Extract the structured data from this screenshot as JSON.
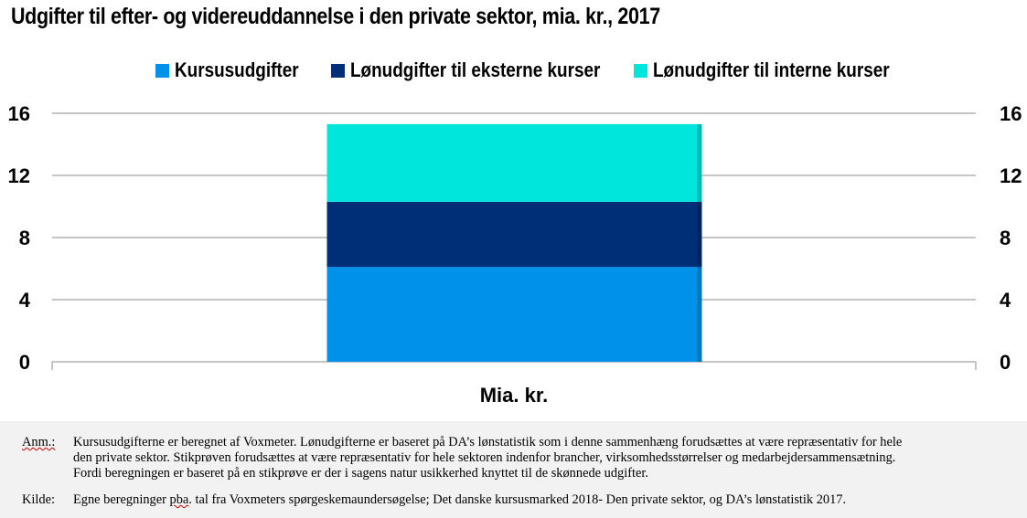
{
  "chart_data": {
    "type": "bar",
    "stacked": true,
    "title": "Udgifter til efter- og videreuddannelse i den private sektor, mia. kr., 2017",
    "categories": [
      "Mia. kr."
    ],
    "series": [
      {
        "name": "Kursusudgifter",
        "values": [
          6.1
        ],
        "color": "#0091ea"
      },
      {
        "name": "Lønudgifter til eksterne kurser",
        "values": [
          4.2
        ],
        "color": "#002f78"
      },
      {
        "name": "Lønudgifter til interne kurser",
        "values": [
          5.0
        ],
        "color": "#00e6dc"
      }
    ],
    "ylim": [
      0,
      16
    ],
    "yticks": [
      "0",
      "4",
      "8",
      "12",
      "16"
    ],
    "y2ticks": [
      "0",
      "4",
      "8",
      "12",
      "16"
    ],
    "grid": true,
    "legend_position": "top"
  },
  "notes": {
    "anm_label": "Anm.:",
    "anm_line1": "Kursusudgifterne er beregnet af Voxmeter. Lønudgifterne er baseret på DA’s lønstatistik som i denne sammenhæng forudsættes at være repræsentativ for hele",
    "anm_line2": "den private sektor. Stikprøven forudsættes at være repræsentativ for hele sektoren indenfor brancher, virksomhedsstørrelser og medarbejdersammensætning.",
    "anm_line3": "Fordi beregningen er baseret på en stikprøve er der i sagens natur usikkerhed knyttet til de skønnede udgifter.",
    "kilde_label": "Kilde:",
    "kilde_pre": "Egne beregninger ",
    "kilde_pba": "pba",
    "kilde_post": ". tal fra Voxmeters spørgeskemaundersøgelse; Det danske kursusmarked 2018- Den private sektor, og DA’s lønstatistik 2017."
  }
}
